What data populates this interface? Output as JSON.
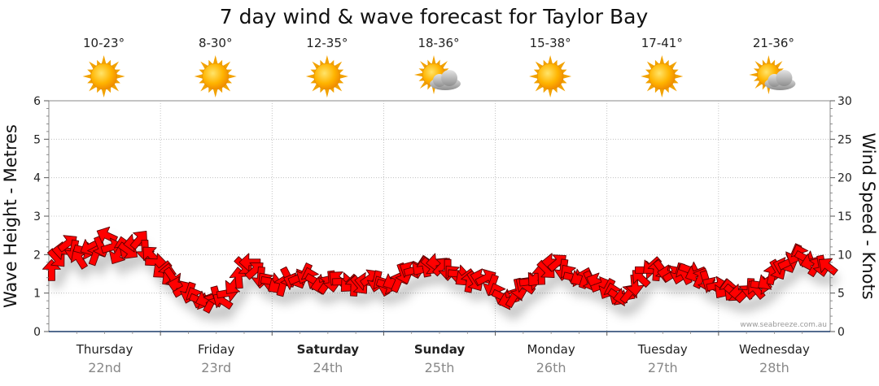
{
  "chart_data": {
    "type": "line",
    "title": "7 day wind & wave forecast for Taylor Bay",
    "ylabel_left": "Wave Height - Metres",
    "ylabel_right": "Wind Speed - Knots",
    "ylim_left": [
      0,
      6
    ],
    "ylim_right": [
      0,
      30
    ],
    "yticks_left": [
      "0",
      "1",
      "2",
      "3",
      "4",
      "5",
      "6"
    ],
    "yticks_right": [
      "0",
      "5",
      "10",
      "15",
      "20",
      "25",
      "30"
    ],
    "credit": "www.seabreeze.com.au",
    "days": [
      {
        "name": "Thursday",
        "date": "22nd",
        "temp": "10-23°",
        "weather": "sunny",
        "bold": false
      },
      {
        "name": "Friday",
        "date": "23rd",
        "temp": "8-30°",
        "weather": "sunny",
        "bold": false
      },
      {
        "name": "Saturday",
        "date": "24th",
        "temp": "12-35°",
        "weather": "sunny",
        "bold": true
      },
      {
        "name": "Sunday",
        "date": "25th",
        "temp": "18-36°",
        "weather": "partly-cloudy",
        "bold": true
      },
      {
        "name": "Monday",
        "date": "26th",
        "temp": "15-38°",
        "weather": "sunny",
        "bold": false
      },
      {
        "name": "Tuesday",
        "date": "27th",
        "temp": "17-41°",
        "weather": "sunny",
        "bold": false
      },
      {
        "name": "Wednesday",
        "date": "28th",
        "temp": "21-36°",
        "weather": "partly-cloudy",
        "bold": false
      }
    ],
    "series": [
      {
        "unit": "knots",
        "color": "#ff0000",
        "values": [
          8,
          9.5,
          10.5,
          11.5,
          10.5,
          9.5,
          10.5,
          11,
          10,
          11,
          12.5,
          11,
          10,
          11,
          10.5,
          11.5,
          12,
          10.5,
          10,
          9,
          8,
          7.5,
          7,
          6,
          5.5,
          5,
          4.5,
          4,
          4.2,
          3.8,
          4.5,
          4,
          5,
          6,
          7,
          8.5,
          9,
          8,
          7,
          6.5,
          6.5,
          6,
          6,
          7,
          6.5,
          7,
          7.5,
          7,
          6.5,
          6,
          6.2,
          6.5,
          6.8,
          6.5,
          6.2,
          6,
          6,
          6.5,
          7,
          6.5,
          6,
          6,
          6.5,
          6.5,
          7.5,
          8,
          8,
          8.5,
          8.5,
          8.5,
          9,
          8.5,
          8,
          7.5,
          7.5,
          7,
          6.5,
          6.5,
          7,
          7,
          6,
          5,
          4.5,
          4,
          4.5,
          5.5,
          6,
          6.5,
          7,
          7.5,
          8,
          9,
          9,
          8,
          7.5,
          7,
          7,
          7,
          6.5,
          6.5,
          6,
          5.5,
          5,
          4.5,
          4.5,
          5,
          6,
          7,
          8,
          8.5,
          8,
          8,
          7.5,
          7.5,
          7.5,
          7.5,
          8,
          7.5,
          7,
          6.5,
          6,
          6,
          5.5,
          5.5,
          5,
          5,
          5,
          5.5,
          5.5,
          6,
          6.5,
          7.5,
          8,
          8.5,
          9,
          10,
          10,
          9.5,
          9,
          8.5,
          8.5,
          8.5
        ]
      }
    ]
  }
}
